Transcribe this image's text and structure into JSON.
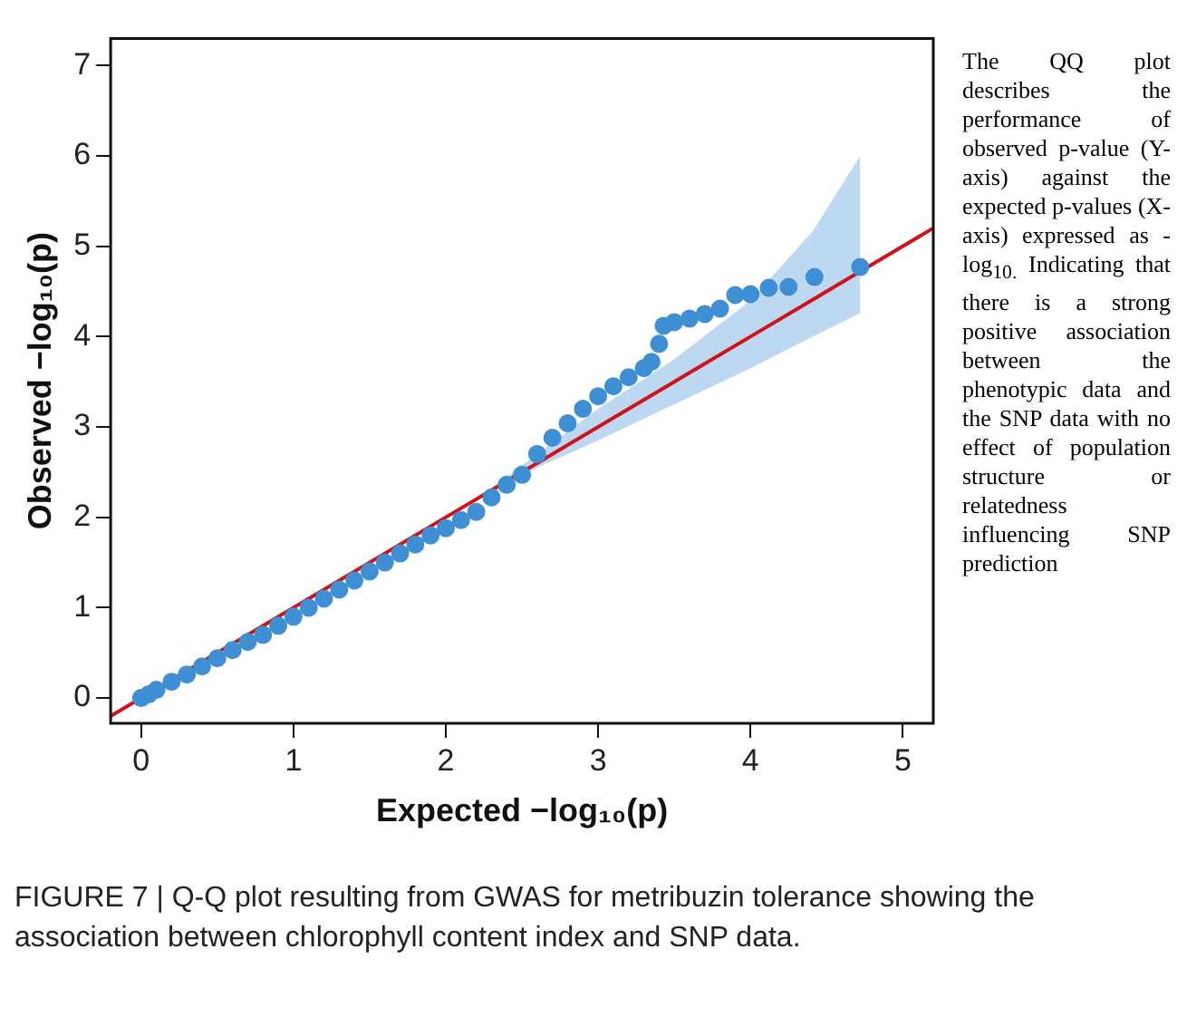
{
  "chart_data": {
    "type": "scatter",
    "xlabel": "Expected −log₁₀(p)",
    "ylabel": "Observed −log₁₀(p)",
    "xlim": [
      -0.2,
      5.2
    ],
    "ylim": [
      -0.28,
      7.3
    ],
    "xticks": [
      0,
      1,
      2,
      3,
      4,
      5
    ],
    "yticks": [
      0,
      1,
      2,
      3,
      4,
      5,
      6,
      7
    ],
    "grid": false,
    "legend": false,
    "series": [
      {
        "marker": "circle",
        "color": "#3f8fd4",
        "x": [
          0,
          0.05,
          0.1,
          0.2,
          0.3,
          0.4,
          0.5,
          0.6,
          0.7,
          0.8,
          0.9,
          1.0,
          1.1,
          1.2,
          1.3,
          1.4,
          1.5,
          1.6,
          1.7,
          1.8,
          1.9,
          2.0,
          2.1,
          2.2,
          2.3,
          2.4,
          2.5,
          2.6,
          2.7,
          2.8,
          2.9,
          3.0,
          3.1,
          3.2,
          3.3,
          3.35,
          3.4,
          3.43,
          3.5,
          3.6,
          3.7,
          3.8,
          3.9,
          4.0,
          4.12,
          4.25,
          4.42,
          4.72
        ],
        "values": [
          0,
          0.04,
          0.09,
          0.18,
          0.26,
          0.35,
          0.44,
          0.53,
          0.62,
          0.7,
          0.8,
          0.9,
          1.0,
          1.1,
          1.2,
          1.3,
          1.4,
          1.5,
          1.6,
          1.7,
          1.8,
          1.88,
          1.97,
          2.06,
          2.22,
          2.36,
          2.47,
          2.7,
          2.88,
          3.04,
          3.2,
          3.34,
          3.45,
          3.55,
          3.65,
          3.72,
          3.92,
          4.12,
          4.16,
          4.2,
          4.25,
          4.31,
          4.46,
          4.47,
          4.54,
          4.55,
          4.66,
          4.77
        ]
      },
      {
        "type": "line",
        "color": "#d0121b",
        "line_style": "solid",
        "x": [
          -0.2,
          2.3,
          2.6,
          3.0,
          3.5,
          4.0,
          4.41,
          4.72,
          5.2
        ],
        "values": [
          -0.2,
          2.3,
          2.6,
          3.0,
          3.5,
          4.0,
          4.41,
          4.72,
          5.2
        ],
        "lower": [
          null,
          2.25,
          2.55,
          2.85,
          3.25,
          3.65,
          4.0,
          4.26,
          null
        ],
        "upper": [
          null,
          2.32,
          2.7,
          3.2,
          3.75,
          4.4,
          5.17,
          6.0,
          null
        ]
      }
    ],
    "annotations": [
      "The QQ plot describes the performance of observed p-value (Y-axis) against the expected p-values (X-axis) expressed as -log$_{10.}$ Indicating that there is a strong positive association between the phenotypic data and the SNP data with no effect of population structure or relatedness influencing SNP prediction",
      "FIGURE 7 | Q-Q plot resulting from GWAS for metribuzin tolerance showing the association between chlorophyll content index and SNP data."
    ]
  }
}
